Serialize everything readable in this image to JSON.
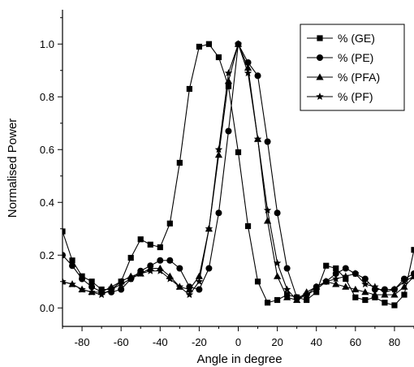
{
  "chart_data": {
    "type": "line",
    "xlabel": "Angle in degree",
    "ylabel": "Normalised Power",
    "xlim": [
      -90,
      90
    ],
    "ylim": [
      -0.07,
      1.13
    ],
    "x_ticks": [
      -80,
      -60,
      -40,
      -20,
      0,
      20,
      40,
      60,
      80
    ],
    "x_tick_labels": [
      "-80",
      "-60",
      "-40",
      "-20",
      "0",
      "20",
      "40",
      "60",
      "80"
    ],
    "y_ticks": [
      0.0,
      0.2,
      0.4,
      0.6,
      0.8,
      1.0
    ],
    "y_tick_labels": [
      "0.0",
      "0.2",
      "0.4",
      "0.6",
      "0.8",
      "1.0"
    ],
    "grid": false,
    "legend_position": "top-right",
    "series": [
      {
        "name": "% (GE)",
        "marker": "square",
        "x": [
          -90,
          -85,
          -80,
          -75,
          -70,
          -65,
          -60,
          -55,
          -50,
          -45,
          -40,
          -35,
          -30,
          -25,
          -20,
          -15,
          -10,
          -5,
          0,
          5,
          10,
          15,
          20,
          25,
          30,
          35,
          40,
          45,
          50,
          55,
          60,
          65,
          70,
          75,
          80,
          85,
          90
        ],
        "values": [
          0.29,
          0.18,
          0.12,
          0.1,
          0.07,
          0.07,
          0.1,
          0.19,
          0.26,
          0.24,
          0.23,
          0.32,
          0.55,
          0.83,
          0.99,
          1.0,
          0.95,
          0.84,
          0.59,
          0.31,
          0.1,
          0.02,
          0.03,
          0.05,
          0.04,
          0.03,
          0.06,
          0.16,
          0.15,
          0.11,
          0.04,
          0.03,
          0.04,
          0.02,
          0.01,
          0.05,
          0.22
        ]
      },
      {
        "name": "% (PE)",
        "marker": "circle",
        "x": [
          -90,
          -85,
          -80,
          -75,
          -70,
          -65,
          -60,
          -55,
          -50,
          -45,
          -40,
          -35,
          -30,
          -25,
          -20,
          -15,
          -10,
          -5,
          0,
          5,
          10,
          15,
          20,
          25,
          30,
          35,
          40,
          45,
          50,
          55,
          60,
          65,
          70,
          75,
          80,
          85,
          90
        ],
        "values": [
          0.2,
          0.16,
          0.11,
          0.08,
          0.06,
          0.06,
          0.07,
          0.11,
          0.14,
          0.16,
          0.18,
          0.18,
          0.15,
          0.08,
          0.07,
          0.15,
          0.36,
          0.67,
          1.0,
          0.93,
          0.88,
          0.63,
          0.36,
          0.15,
          0.04,
          0.05,
          0.08,
          0.1,
          0.13,
          0.15,
          0.13,
          0.11,
          0.07,
          0.07,
          0.07,
          0.11,
          0.13
        ]
      },
      {
        "name": "% (PFA)",
        "marker": "triangle",
        "x": [
          -90,
          -85,
          -80,
          -75,
          -70,
          -65,
          -60,
          -55,
          -50,
          -45,
          -40,
          -35,
          -30,
          -25,
          -20,
          -15,
          -10,
          -5,
          0,
          5,
          10,
          15,
          20,
          25,
          30,
          35,
          40,
          45,
          50,
          55,
          60,
          65,
          70,
          75,
          80,
          85,
          90
        ],
        "values": [
          0.1,
          0.09,
          0.07,
          0.06,
          0.06,
          0.08,
          0.1,
          0.12,
          0.13,
          0.15,
          0.15,
          0.12,
          0.08,
          0.07,
          0.12,
          0.3,
          0.58,
          0.86,
          1.0,
          0.91,
          0.64,
          0.33,
          0.12,
          0.04,
          0.03,
          0.06,
          0.08,
          0.1,
          0.09,
          0.08,
          0.07,
          0.06,
          0.05,
          0.05,
          0.05,
          0.08,
          0.12
        ]
      },
      {
        "name": "% (PF)",
        "marker": "star",
        "x": [
          -90,
          -85,
          -80,
          -75,
          -70,
          -65,
          -60,
          -55,
          -50,
          -45,
          -40,
          -35,
          -30,
          -25,
          -20,
          -15,
          -10,
          -5,
          0,
          5,
          10,
          15,
          20,
          25,
          30,
          35,
          40,
          45,
          50,
          55,
          60,
          65,
          70,
          75,
          80,
          85,
          90
        ],
        "values": [
          0.1,
          0.09,
          0.07,
          0.06,
          0.05,
          0.07,
          0.09,
          0.11,
          0.13,
          0.14,
          0.14,
          0.11,
          0.08,
          0.05,
          0.1,
          0.3,
          0.6,
          0.89,
          1.0,
          0.89,
          0.64,
          0.37,
          0.17,
          0.07,
          0.03,
          0.05,
          0.07,
          0.1,
          0.11,
          0.12,
          0.13,
          0.09,
          0.08,
          0.06,
          0.07,
          0.1,
          0.12
        ]
      }
    ]
  }
}
